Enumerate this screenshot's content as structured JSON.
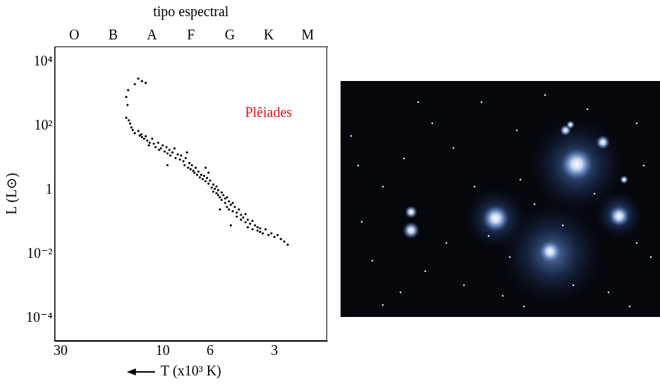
{
  "chart_data": {
    "type": "scatter",
    "x_label": "T (x10³ K)",
    "y_label": "L (L⊙)",
    "top_axis": {
      "title": "tipo espectral",
      "categories": [
        "O",
        "B",
        "A",
        "F",
        "G",
        "K",
        "M"
      ]
    },
    "log": true,
    "grid": false,
    "color": "#000000",
    "marker": "circle",
    "xlim": [
      32,
      1.7
    ],
    "xticks": [
      30,
      10,
      6,
      3
    ],
    "ylim": [
      2e-05,
      30000
    ],
    "yticks": [
      {
        "value": 0.0001,
        "label": "10⁻⁴"
      },
      {
        "value": 0.01,
        "label": "10⁻²"
      },
      1,
      {
        "value": 100,
        "label": "10²"
      },
      {
        "value": 10000,
        "label": "10⁴"
      }
    ],
    "annotations": [
      {
        "text": "Plêiades",
        "x": 3.2,
        "y": 250,
        "color": "#e01818"
      }
    ],
    "x": [
      13,
      12.5,
      12,
      13.5,
      14.5,
      14.8,
      14.6,
      14.8,
      14.4,
      14.2,
      14,
      13.8,
      13.5,
      13,
      12.8,
      12.5,
      12.6,
      12.2,
      12,
      11.8,
      11.5,
      11.6,
      11.2,
      11,
      10.8,
      10.5,
      10.4,
      10.2,
      10,
      9.8,
      9.6,
      9.5,
      9.3,
      9.2,
      9,
      8.8,
      8.7,
      8.5,
      8.3,
      8.2,
      8,
      7.9,
      7.8,
      7.6,
      7.5,
      7.4,
      7.3,
      7.2,
      7.1,
      7,
      6.9,
      6.8,
      6.7,
      6.6,
      6.5,
      6.4,
      6.3,
      6.2,
      6.1,
      6.1,
      6,
      5.9,
      5.8,
      5.8,
      5.7,
      5.6,
      5.6,
      5.5,
      5.5,
      5.4,
      5.3,
      5.3,
      5.2,
      5.1,
      5.1,
      5,
      5,
      4.9,
      4.9,
      4.8,
      4.7,
      4.7,
      4.6,
      4.5,
      4.5,
      4.4,
      4.3,
      4.3,
      4.2,
      4.1,
      4.1,
      4,
      4,
      3.9,
      3.8,
      3.8,
      3.7,
      3.6,
      3.6,
      3.5,
      3.5,
      3.4,
      3.3,
      3.2,
      3.1,
      3,
      2.9,
      2.8,
      2.7,
      2.6,
      7.7,
      6.3,
      9.5,
      5.4,
      4.8
    ],
    "values": [
      3000,
      2500,
      2200,
      2000,
      1300,
      800,
      450,
      180,
      150,
      120,
      90,
      75,
      60,
      70,
      50,
      45,
      55,
      40,
      48,
      35,
      30,
      25,
      40,
      28,
      22,
      30,
      18,
      20,
      25,
      16,
      22,
      14,
      18,
      12,
      15,
      20,
      10,
      13,
      9,
      12,
      8,
      6,
      10,
      5,
      7,
      4.5,
      6,
      4,
      3.5,
      5,
      3,
      3.8,
      2.5,
      3,
      2.2,
      2.8,
      1.9,
      2.4,
      3.5,
      1.6,
      2,
      1.2,
      1.5,
      0.9,
      1.1,
      0.8,
      1.3,
      0.7,
      1,
      0.6,
      0.85,
      0.5,
      0.7,
      0.55,
      0.4,
      0.6,
      0.3,
      0.45,
      0.25,
      0.35,
      0.4,
      0.22,
      0.3,
      0.2,
      0.15,
      0.25,
      0.17,
      0.12,
      0.14,
      0.1,
      0.18,
      0.12,
      0.07,
      0.09,
      0.11,
      0.06,
      0.08,
      0.055,
      0.07,
      0.05,
      0.065,
      0.045,
      0.06,
      0.04,
      0.045,
      0.035,
      0.04,
      0.03,
      0.025,
      0.02,
      15,
      5,
      6,
      0.25,
      0.08
    ]
  }
}
